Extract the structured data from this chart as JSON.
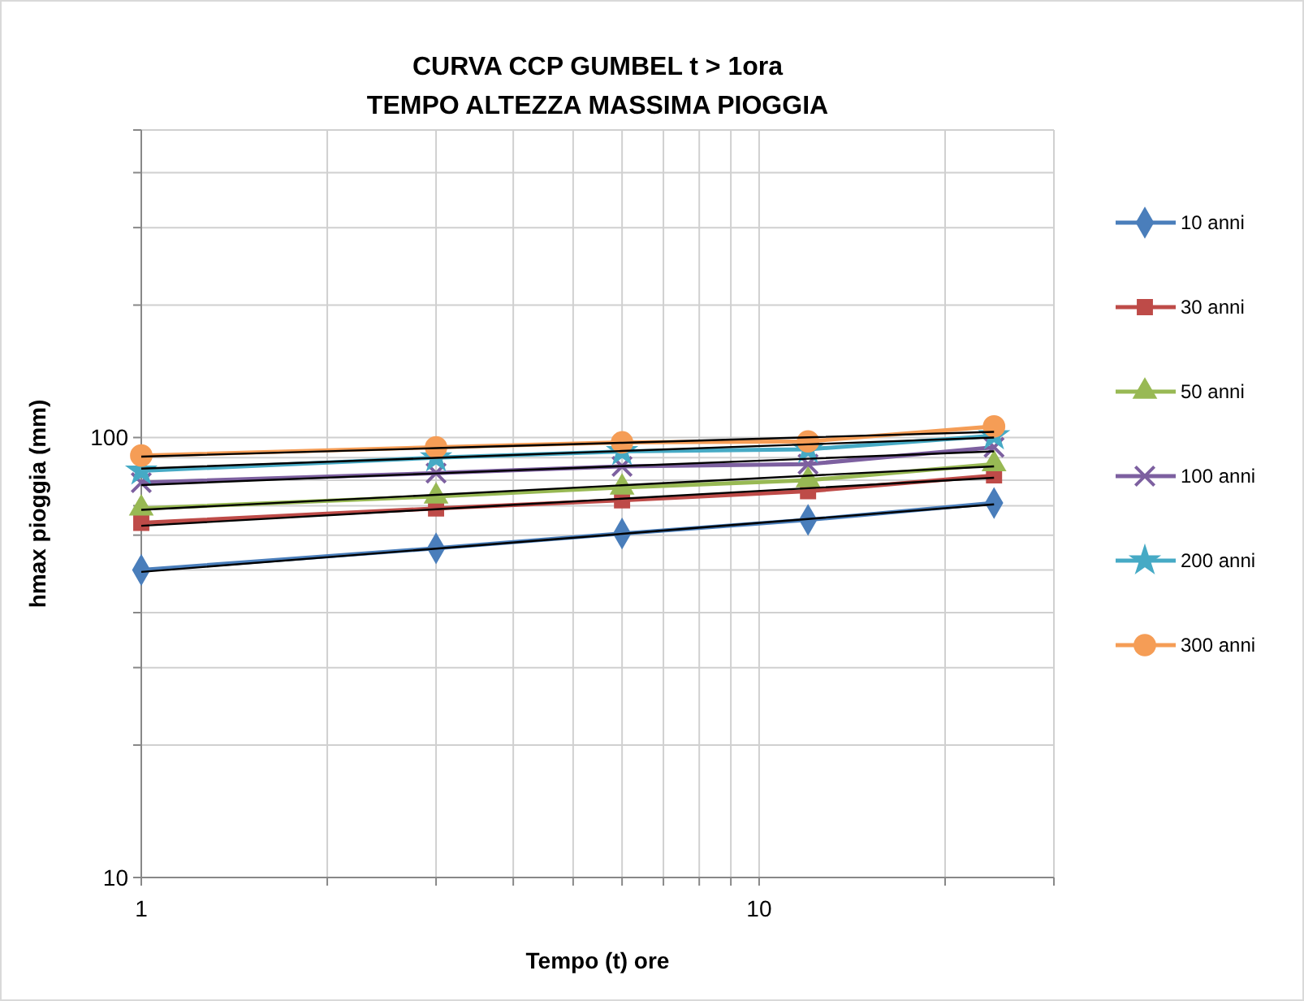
{
  "chart_data": {
    "type": "line",
    "title": "CURVA CCP GUMBEL  t > 1ora",
    "subtitle": "TEMPO ALTEZZA MASSIMA PIOGGIA",
    "xlabel": "Tempo (t) ore",
    "ylabel": "hmax pioggia (mm)",
    "log": "xy",
    "grid": true,
    "legend": "right",
    "line_style": "solid",
    "xlim": [
      1,
      30
    ],
    "xticks": [
      1,
      {
        "value": 2,
        "label": null
      },
      {
        "value": 3,
        "label": null
      },
      {
        "value": 4,
        "label": null
      },
      {
        "value": 5,
        "label": null
      },
      {
        "value": 6,
        "label": null
      },
      {
        "value": 7,
        "label": null
      },
      {
        "value": 8,
        "label": null
      },
      {
        "value": 9,
        "label": null
      },
      10,
      {
        "value": 20,
        "label": null
      },
      {
        "value": 30,
        "label": null
      }
    ],
    "ylim": [
      10,
      500
    ],
    "yticks": [
      10,
      {
        "value": 20,
        "label": null
      },
      {
        "value": 30,
        "label": null
      },
      {
        "value": 40,
        "label": null
      },
      {
        "value": 50,
        "label": null
      },
      {
        "value": 60,
        "label": null
      },
      {
        "value": 70,
        "label": null
      },
      {
        "value": 80,
        "label": null
      },
      {
        "value": 90,
        "label": null
      },
      100,
      {
        "value": 200,
        "label": null
      },
      {
        "value": 300,
        "label": null
      },
      {
        "value": 400,
        "label": null
      },
      {
        "value": 500,
        "label": null
      }
    ],
    "x": [
      1,
      3,
      6,
      12,
      24
    ],
    "series": [
      {
        "name": "10 anni",
        "color": "#4a7ebb",
        "marker": "diamond",
        "values": [
          50,
          56,
          60.5,
          65,
          71
        ]
      },
      {
        "name": "30 anni",
        "color": "#be4b48",
        "marker": "square",
        "values": [
          64,
          69,
          72,
          75.5,
          82
        ]
      },
      {
        "name": "50 anni",
        "color": "#98b954",
        "marker": "triangle",
        "values": [
          69,
          73.5,
          77,
          80,
          87
        ]
      },
      {
        "name": "100 anni",
        "color": "#7d60a0",
        "marker": "cross",
        "values": [
          79,
          83,
          86,
          87,
          95
        ]
      },
      {
        "name": "200 anni",
        "color": "#46aac5",
        "marker": "star",
        "values": [
          84,
          90,
          93,
          94,
          101
        ]
      },
      {
        "name": "300 anni",
        "color": "#f59d56",
        "marker": "circle",
        "values": [
          91,
          95,
          97.5,
          98,
          106
        ]
      },
      {
        "type": "line",
        "color": "#000000",
        "marker": "none",
        "values": [
          49.5,
          55.9,
          60.4,
          65.3,
          70.5
        ]
      },
      {
        "type": "line",
        "color": "#000000",
        "marker": "none",
        "values": [
          63,
          68.7,
          72.6,
          76.7,
          81
        ]
      },
      {
        "type": "line",
        "color": "#000000",
        "marker": "none",
        "values": [
          68.5,
          74.1,
          77.9,
          81.9,
          86
        ]
      },
      {
        "type": "line",
        "color": "#000000",
        "marker": "none",
        "values": [
          78,
          82.9,
          86.1,
          89.5,
          93
        ]
      },
      {
        "type": "line",
        "color": "#000000",
        "marker": "none",
        "values": [
          85,
          89.9,
          93.2,
          96.5,
          100
        ]
      },
      {
        "type": "line",
        "color": "#000000",
        "marker": "none",
        "values": [
          90.5,
          94.6,
          97.3,
          100.1,
          103
        ]
      }
    ]
  }
}
